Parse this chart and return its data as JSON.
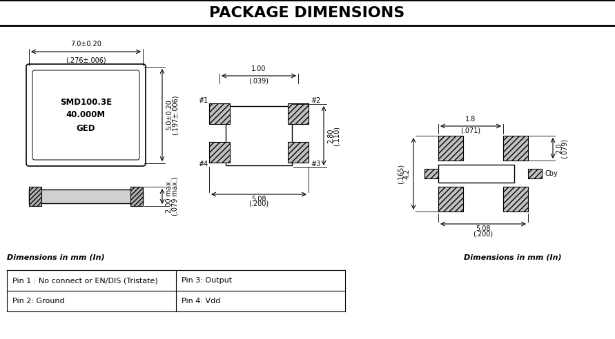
{
  "title": "PACKAGE DIMENSIONS",
  "title_fontsize": 16,
  "bg_color": "#ffffff",
  "line_color": "#000000",
  "dim_label_fs": 7,
  "body_label": "SMD100.3E\n40.000M\nGED",
  "left_dims": {
    "width_mm": "7.0±0.20",
    "width_in": "(.276±.006)",
    "height_mm": "5.0±0.20",
    "height_in": "(.197±.006)",
    "thick_mm": "2.00 max.",
    "thick_in": "(.079 max.)"
  },
  "top_dims": {
    "pad_width_mm": "1.00",
    "pad_width_in": "(.039)",
    "body_width_mm": "2.80",
    "body_width_in": "(.110)",
    "pad_span_mm": "5.08",
    "pad_span_in": "(.200)"
  },
  "right_dims": {
    "top_mm": "1.8",
    "top_in": "(.071)",
    "side_mm": "2.0",
    "side_in": "(.079)",
    "height_mm": "4.2",
    "height_in": "(.165)",
    "width_mm": "5.08",
    "width_in": "(.200)",
    "label": "Cby"
  },
  "pin_table": {
    "pin1": "Pin 1 : No connect or EN/DIS (Tristate)",
    "pin2": "Pin 2: Ground",
    "pin3": "Pin 3: Output",
    "pin4": "Pin 4: Vdd"
  },
  "dims_label": "Dimensions in mm (In)"
}
